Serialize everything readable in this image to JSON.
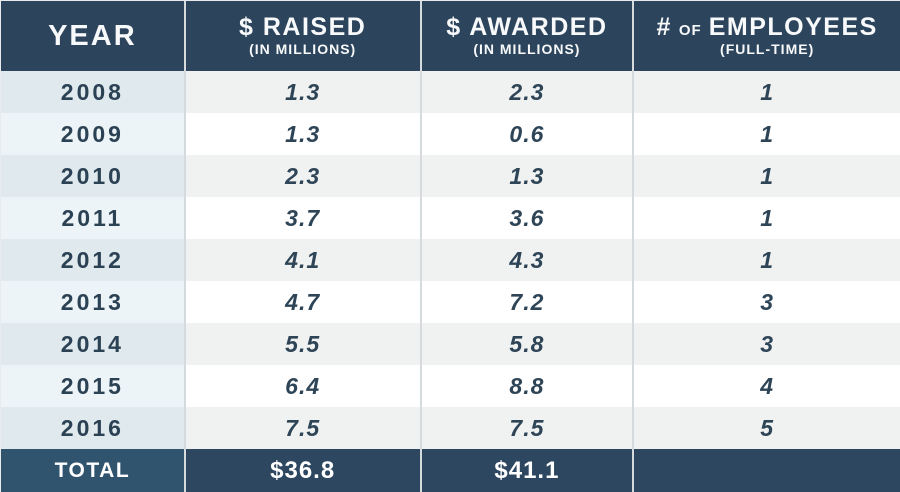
{
  "header": {
    "year": "YEAR",
    "raised": {
      "title": "$ RAISED",
      "sub": "(IN MILLIONS)"
    },
    "awarded": {
      "title": "$ AWARDED",
      "sub": "(IN MILLIONS)"
    },
    "employees": {
      "hash": "#",
      "of": "OF",
      "title": "EMPLOYEES",
      "sub": "(FULL-TIME)"
    }
  },
  "table": {
    "rows": [
      {
        "year": "2008",
        "raised": "1.3",
        "awarded": "2.3",
        "employees": "1"
      },
      {
        "year": "2009",
        "raised": "1.3",
        "awarded": "0.6",
        "employees": "1"
      },
      {
        "year": "2010",
        "raised": "2.3",
        "awarded": "1.3",
        "employees": "1"
      },
      {
        "year": "2011",
        "raised": "3.7",
        "awarded": "3.6",
        "employees": "1"
      },
      {
        "year": "2012",
        "raised": "4.1",
        "awarded": "4.3",
        "employees": "1"
      },
      {
        "year": "2013",
        "raised": "4.7",
        "awarded": "7.2",
        "employees": "3"
      },
      {
        "year": "2014",
        "raised": "5.5",
        "awarded": "5.8",
        "employees": "3"
      },
      {
        "year": "2015",
        "raised": "6.4",
        "awarded": "8.8",
        "employees": "4"
      },
      {
        "year": "2016",
        "raised": "7.5",
        "awarded": "7.5",
        "employees": "5"
      }
    ],
    "total": {
      "label": "TOTAL",
      "raised": "$36.8",
      "awarded": "$41.1",
      "employees": ""
    }
  },
  "colors": {
    "header_bg": "#2d445d",
    "total_bg": "#2d4760",
    "total_label_bg": "#30536e",
    "year_row_odd": "#e0e9ed",
    "year_row_even": "#edf4f7",
    "value_row_odd": "#f0f1f1",
    "value_row_even": "#ffffff",
    "divider": "#d5dadc",
    "text_dark": "#2b4154",
    "text_light": "#ffffff"
  },
  "chart_data": {
    "type": "table",
    "columns": [
      "YEAR",
      "$ RAISED (IN MILLIONS)",
      "$ AWARDED (IN MILLIONS)",
      "# OF EMPLOYEES (FULL-TIME)"
    ],
    "rows": [
      [
        2008,
        1.3,
        2.3,
        1
      ],
      [
        2009,
        1.3,
        0.6,
        1
      ],
      [
        2010,
        2.3,
        1.3,
        1
      ],
      [
        2011,
        3.7,
        3.6,
        1
      ],
      [
        2012,
        4.1,
        4.3,
        1
      ],
      [
        2013,
        4.7,
        7.2,
        3
      ],
      [
        2014,
        5.5,
        5.8,
        3
      ],
      [
        2015,
        6.4,
        8.8,
        4
      ],
      [
        2016,
        7.5,
        7.5,
        5
      ]
    ],
    "totals": {
      "label": "TOTAL",
      "raised": 36.8,
      "awarded": 41.1
    }
  }
}
